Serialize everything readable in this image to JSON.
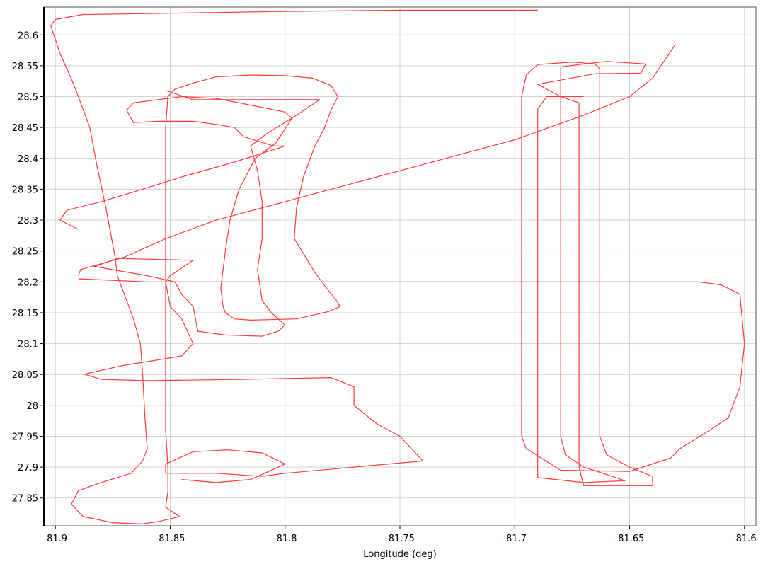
{
  "chart_data": {
    "type": "line",
    "xlabel": "Longitude (deg)",
    "ylabel": "",
    "xlim": [
      -81.905,
      -81.595
    ],
    "ylim": [
      27.805,
      28.645
    ],
    "grid": true,
    "x_ticks": [
      -81.9,
      -81.85,
      -81.8,
      -81.75,
      -81.7,
      -81.65,
      -81.6
    ],
    "x_tick_labels": [
      "-81.9",
      "-81.85",
      "-81.8",
      "-81.75",
      "-81.7",
      "-81.65",
      "-81.6"
    ],
    "y_ticks": [
      27.85,
      27.9,
      27.95,
      28.0,
      28.05,
      28.1,
      28.15,
      28.2,
      28.25,
      28.3,
      28.35,
      28.4,
      28.45,
      28.5,
      28.55,
      28.6
    ],
    "y_tick_labels": [
      "27.85",
      "27.9",
      "27.95",
      "28",
      "28.05",
      "28.1",
      "28.15",
      "28.2",
      "28.25",
      "28.3",
      "28.35",
      "28.4",
      "28.45",
      "28.5",
      "28.55",
      "28.6"
    ],
    "series": [
      {
        "color": "#ff3b3b",
        "points": [
          [
            -81.69,
            28.64
          ],
          [
            -81.72,
            28.64
          ],
          [
            -81.75,
            28.64
          ],
          [
            -81.8,
            28.638
          ],
          [
            -81.85,
            28.635
          ],
          [
            -81.888,
            28.633
          ],
          [
            -81.9,
            28.625
          ],
          [
            -81.902,
            28.615
          ],
          [
            -81.898,
            28.57
          ],
          [
            -81.892,
            28.52
          ],
          [
            -81.885,
            28.45
          ],
          [
            -81.882,
            28.39
          ],
          [
            -81.878,
            28.32
          ],
          [
            -81.876,
            28.28
          ],
          [
            -81.874,
            28.24
          ],
          [
            -81.873,
            28.21
          ],
          [
            -81.87,
            28.18
          ],
          [
            -81.866,
            28.14
          ],
          [
            -81.863,
            28.1
          ],
          [
            -81.862,
            28.05
          ],
          [
            -81.861,
            27.98
          ],
          [
            -81.86,
            27.93
          ],
          [
            -81.862,
            27.91
          ],
          [
            -81.867,
            27.89
          ],
          [
            -81.88,
            27.875
          ],
          [
            -81.89,
            27.862
          ],
          [
            -81.893,
            27.84
          ],
          [
            -81.888,
            27.82
          ],
          [
            -81.875,
            27.81
          ],
          [
            -81.862,
            27.808
          ],
          [
            -81.855,
            27.812
          ],
          [
            -81.846,
            27.82
          ],
          [
            -81.852,
            27.835
          ],
          [
            -81.851,
            27.86
          ],
          [
            -81.851,
            27.9
          ],
          [
            -81.852,
            27.96
          ],
          [
            -81.852,
            28.05
          ],
          [
            -81.852,
            28.15
          ],
          [
            -81.852,
            28.25
          ],
          [
            -81.852,
            28.35
          ],
          [
            -81.852,
            28.45
          ],
          [
            -81.851,
            28.5
          ],
          [
            -81.848,
            28.512
          ],
          [
            -81.84,
            28.522
          ],
          [
            -81.83,
            28.532
          ],
          [
            -81.815,
            28.535
          ],
          [
            -81.8,
            28.534
          ],
          [
            -81.788,
            28.53
          ],
          [
            -81.78,
            28.518
          ],
          [
            -81.777,
            28.5
          ],
          [
            -81.78,
            28.478
          ],
          [
            -81.783,
            28.448
          ],
          [
            -81.787,
            28.42
          ],
          [
            -81.792,
            28.37
          ],
          [
            -81.795,
            28.32
          ],
          [
            -81.796,
            28.27
          ],
          [
            -81.791,
            28.24
          ],
          [
            -81.787,
            28.215
          ],
          [
            -81.782,
            28.19
          ],
          [
            -81.778,
            28.172
          ],
          [
            -81.776,
            28.16
          ],
          [
            -81.781,
            28.152
          ],
          [
            -81.795,
            28.14
          ],
          [
            -81.815,
            28.138
          ],
          [
            -81.822,
            28.14
          ],
          [
            -81.826,
            28.15
          ],
          [
            -81.827,
            28.16
          ],
          [
            -81.828,
            28.19
          ],
          [
            -81.826,
            28.25
          ],
          [
            -81.824,
            28.3
          ],
          [
            -81.82,
            28.35
          ],
          [
            -81.813,
            28.4
          ],
          [
            -81.804,
            28.425
          ],
          [
            -81.797,
            28.465
          ],
          [
            -81.8,
            28.475
          ],
          [
            -81.82,
            28.49
          ],
          [
            -81.83,
            28.497
          ],
          [
            -81.845,
            28.5
          ],
          [
            -81.866,
            28.49
          ],
          [
            -81.869,
            28.478
          ],
          [
            -81.866,
            28.458
          ],
          [
            -81.855,
            28.46
          ],
          [
            -81.84,
            28.46
          ],
          [
            -81.83,
            28.455
          ],
          [
            -81.822,
            28.45
          ],
          [
            -81.818,
            28.435
          ],
          [
            -81.805,
            28.42
          ],
          [
            -81.8,
            28.42
          ],
          [
            -81.822,
            28.394
          ],
          [
            -81.845,
            28.37
          ],
          [
            -81.862,
            28.35
          ],
          [
            -81.88,
            28.33
          ],
          [
            -81.895,
            28.316
          ],
          [
            -81.898,
            28.3
          ],
          [
            -81.89,
            28.285
          ]
        ]
      },
      {
        "color": "#ff3b3b",
        "points": [
          [
            -81.89,
            28.21
          ],
          [
            -81.889,
            28.22
          ],
          [
            -81.87,
            28.24
          ],
          [
            -81.852,
            28.27
          ],
          [
            -81.83,
            28.3
          ],
          [
            -81.8,
            28.33
          ],
          [
            -81.77,
            28.36
          ],
          [
            -81.73,
            28.4
          ],
          [
            -81.7,
            28.43
          ],
          [
            -81.67,
            28.47
          ],
          [
            -81.65,
            28.5
          ],
          [
            -81.64,
            28.53
          ],
          [
            -81.63,
            28.585
          ]
        ]
      },
      {
        "color": "#ff3b3b",
        "points": [
          [
            -81.89,
            28.205
          ],
          [
            -81.86,
            28.2
          ],
          [
            -81.83,
            28.2
          ],
          [
            -81.8,
            28.2
          ],
          [
            -81.75,
            28.2
          ],
          [
            -81.7,
            28.2
          ],
          [
            -81.65,
            28.2
          ],
          [
            -81.62,
            28.2
          ],
          [
            -81.61,
            28.195
          ],
          [
            -81.602,
            28.18
          ],
          [
            -81.6,
            28.1
          ],
          [
            -81.602,
            28.03
          ],
          [
            -81.607,
            27.98
          ],
          [
            -81.615,
            27.96
          ],
          [
            -81.628,
            27.93
          ],
          [
            -81.632,
            27.915
          ],
          [
            -81.65,
            27.893
          ],
          [
            -81.68,
            27.895
          ],
          [
            -81.695,
            27.93
          ],
          [
            -81.697,
            27.95
          ],
          [
            -81.697,
            28.0
          ],
          [
            -81.697,
            28.2
          ],
          [
            -81.697,
            28.4
          ],
          [
            -81.697,
            28.5
          ],
          [
            -81.695,
            28.535
          ],
          [
            -81.69,
            28.552
          ],
          [
            -81.675,
            28.556
          ],
          [
            -81.665,
            28.553
          ],
          [
            -81.663,
            28.545
          ],
          [
            -81.663,
            28.52
          ],
          [
            -81.663,
            28.45
          ],
          [
            -81.663,
            28.35
          ],
          [
            -81.663,
            28.2
          ],
          [
            -81.663,
            28.05
          ],
          [
            -81.663,
            27.95
          ],
          [
            -81.66,
            27.92
          ],
          [
            -81.65,
            27.9
          ],
          [
            -81.64,
            27.885
          ],
          [
            -81.64,
            27.87
          ],
          [
            -81.65,
            27.87
          ],
          [
            -81.67,
            27.87
          ],
          [
            -81.672,
            27.9
          ],
          [
            -81.672,
            28.0
          ],
          [
            -81.672,
            28.2
          ],
          [
            -81.672,
            28.4
          ],
          [
            -81.672,
            28.49
          ],
          [
            -81.68,
            28.5
          ],
          [
            -81.69,
            28.52
          ],
          [
            -81.665,
            28.537
          ],
          [
            -81.645,
            28.538
          ],
          [
            -81.643,
            28.553
          ],
          [
            -81.66,
            28.557
          ],
          [
            -81.672,
            28.552
          ],
          [
            -81.68,
            28.548
          ],
          [
            -81.68,
            28.5
          ],
          [
            -81.68,
            28.3
          ],
          [
            -81.68,
            28.1
          ],
          [
            -81.68,
            27.95
          ],
          [
            -81.678,
            27.92
          ],
          [
            -81.67,
            27.9
          ],
          [
            -81.66,
            27.888
          ],
          [
            -81.652,
            27.878
          ],
          [
            -81.67,
            27.875
          ],
          [
            -81.69,
            27.883
          ],
          [
            -81.69,
            27.9
          ],
          [
            -81.69,
            28.1
          ],
          [
            -81.69,
            28.3
          ],
          [
            -81.69,
            28.48
          ],
          [
            -81.686,
            28.5
          ],
          [
            -81.67,
            28.5
          ]
        ]
      },
      {
        "color": "#ff3b3b",
        "points": [
          [
            -81.888,
            28.05
          ],
          [
            -81.87,
            28.065
          ],
          [
            -81.853,
            28.075
          ],
          [
            -81.845,
            28.08
          ],
          [
            -81.84,
            28.1
          ],
          [
            -81.845,
            28.14
          ],
          [
            -81.85,
            28.16
          ],
          [
            -81.852,
            28.2
          ],
          [
            -81.85,
            28.21
          ],
          [
            -81.84,
            28.235
          ],
          [
            -81.873,
            28.238
          ],
          [
            -81.883,
            28.225
          ],
          [
            -81.86,
            28.21
          ],
          [
            -81.848,
            28.2
          ],
          [
            -81.845,
            28.18
          ],
          [
            -81.84,
            28.16
          ],
          [
            -81.838,
            28.12
          ],
          [
            -81.826,
            28.114
          ],
          [
            -81.81,
            28.112
          ],
          [
            -81.803,
            28.12
          ],
          [
            -81.8,
            28.13
          ],
          [
            -81.806,
            28.15
          ],
          [
            -81.81,
            28.17
          ],
          [
            -81.812,
            28.22
          ],
          [
            -81.81,
            28.27
          ],
          [
            -81.81,
            28.33
          ],
          [
            -81.812,
            28.38
          ],
          [
            -81.815,
            28.42
          ],
          [
            -81.808,
            28.44
          ],
          [
            -81.795,
            28.47
          ],
          [
            -81.785,
            28.495
          ],
          [
            -81.84,
            28.495
          ],
          [
            -81.852,
            28.51
          ]
        ]
      },
      {
        "color": "#ff3b3b",
        "points": [
          [
            -81.887,
            28.05
          ],
          [
            -81.88,
            28.042
          ],
          [
            -81.86,
            28.04
          ],
          [
            -81.82,
            28.042
          ],
          [
            -81.78,
            28.045
          ],
          [
            -81.77,
            28.03
          ],
          [
            -81.77,
            28.0
          ],
          [
            -81.76,
            27.97
          ],
          [
            -81.75,
            27.95
          ],
          [
            -81.74,
            27.91
          ],
          [
            -81.8,
            27.89
          ],
          [
            -81.81,
            27.885
          ],
          [
            -81.83,
            27.89
          ],
          [
            -81.852,
            27.89
          ],
          [
            -81.852,
            27.905
          ],
          [
            -81.84,
            27.925
          ],
          [
            -81.825,
            27.928
          ],
          [
            -81.81,
            27.923
          ],
          [
            -81.8,
            27.905
          ],
          [
            -81.803,
            27.9
          ],
          [
            -81.815,
            27.88
          ],
          [
            -81.83,
            27.875
          ],
          [
            -81.845,
            27.88
          ]
        ]
      }
    ]
  }
}
